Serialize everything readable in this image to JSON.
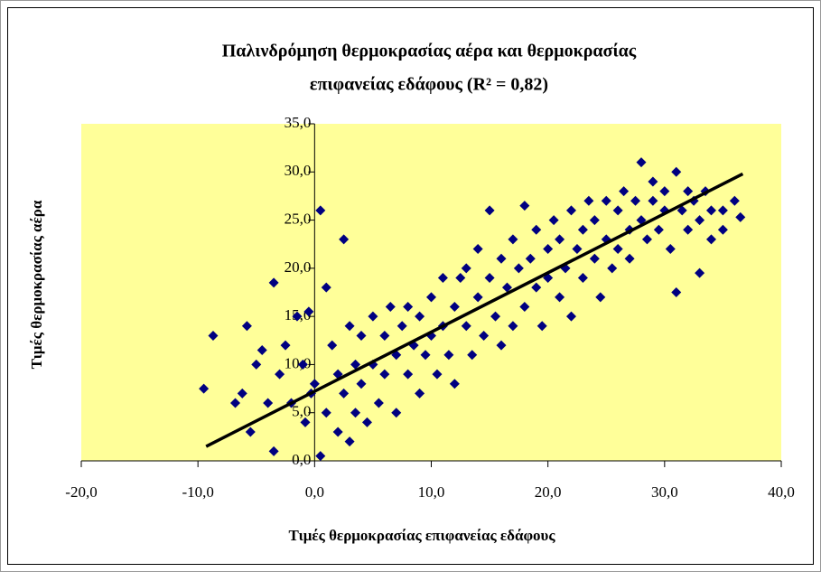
{
  "chart_data": {
    "type": "scatter",
    "title": [
      "Παλινδρόμηση θερμοκρασίας αέρα και θερμοκρασίας",
      "επιφανείας εδάφους (R² = 0,82)"
    ],
    "x_label": "Τιμές θερμοκρασίας επιφανείας εδάφους",
    "y_label": "Τιμές θερμοκρασίας αέρα",
    "color": "#000080",
    "plot_background": "#ffff99",
    "x": [
      -9.5,
      -8.7,
      -6.8,
      -6.2,
      -5.8,
      -5.5,
      -5,
      -4.5,
      -4,
      -3.5,
      -3.5,
      -3,
      -2.5,
      -2,
      -1.5,
      -1,
      -0.8,
      -0.5,
      -0.3,
      0,
      0.5,
      0.5,
      1,
      1,
      1.5,
      2,
      2,
      2.5,
      2.5,
      3,
      3,
      3.5,
      3.5,
      4,
      4,
      4.5,
      5,
      5,
      5.5,
      6,
      6,
      6.5,
      7,
      7,
      7.5,
      8,
      8,
      8.5,
      9,
      9,
      9.5,
      10,
      10,
      10.5,
      11,
      11,
      11.5,
      12,
      12,
      12.5,
      13,
      13,
      13.5,
      14,
      14,
      14.5,
      15,
      15,
      15.5,
      16,
      16,
      16.5,
      17,
      17,
      17.5,
      18,
      18,
      18.5,
      19,
      19,
      19.5,
      20,
      20,
      20.5,
      21,
      21,
      21.5,
      22,
      22,
      22.5,
      23,
      23,
      23.5,
      24,
      24,
      24.5,
      25,
      25,
      25.5,
      26,
      26,
      26.5,
      27,
      27,
      27.5,
      28,
      28,
      28.5,
      29,
      29,
      29.5,
      30,
      30,
      30.5,
      31,
      31,
      31.5,
      32,
      32,
      32.5,
      33,
      33,
      33.5,
      34,
      34,
      35,
      35,
      36,
      36.5
    ],
    "values": [
      7.5,
      13,
      6,
      7,
      14,
      3,
      10,
      11.5,
      6,
      18.5,
      1,
      9,
      12,
      6,
      15,
      10,
      4,
      15.5,
      7,
      8,
      26,
      0.5,
      18,
      5,
      12,
      3,
      9,
      23,
      7,
      14,
      2,
      10,
      5,
      13,
      8,
      4,
      15,
      10,
      6,
      13,
      9,
      16,
      11,
      5,
      14,
      9,
      16,
      12,
      7,
      15,
      11,
      17,
      13,
      9,
      19,
      14,
      11,
      16,
      8,
      19,
      14,
      20,
      11,
      17,
      22,
      13,
      19,
      26,
      15,
      21,
      12,
      18,
      23,
      14,
      20,
      26.5,
      16,
      21,
      18,
      24,
      14,
      22,
      19,
      25,
      17,
      23,
      20,
      26,
      15,
      22,
      24,
      19,
      27,
      21,
      25,
      17,
      27,
      23,
      20,
      26,
      22,
      28,
      24,
      21,
      27,
      31,
      25,
      23,
      27,
      29,
      24,
      28,
      26,
      22,
      30,
      17.5,
      26,
      28,
      24,
      27,
      19.5,
      25,
      28,
      26,
      23,
      26,
      24,
      27,
      25.3
    ],
    "trendline": {
      "x": [
        -9.3,
        36.7
      ],
      "y": [
        1.5,
        29.8
      ],
      "color": "#000000"
    },
    "xlim": [
      -20,
      40
    ],
    "xticks": [
      {
        "value": -20,
        "label": "-20,0"
      },
      {
        "value": -10,
        "label": "-10,0"
      },
      {
        "value": 0,
        "label": "0,0"
      },
      {
        "value": 10,
        "label": "10,0"
      },
      {
        "value": 20,
        "label": "20,0"
      },
      {
        "value": 30,
        "label": "30,0"
      },
      {
        "value": 40,
        "label": "40,0"
      }
    ],
    "ylim": [
      0,
      35
    ],
    "yticks": [
      {
        "value": 0,
        "label": "0,0"
      },
      {
        "value": 5,
        "label": "5,0"
      },
      {
        "value": 10,
        "label": "10,0"
      },
      {
        "value": 15,
        "label": "15,0"
      },
      {
        "value": 20,
        "label": "20,0"
      },
      {
        "value": 25,
        "label": "25,0"
      },
      {
        "value": 30,
        "label": "30,0"
      },
      {
        "value": 35,
        "label": "35,0"
      }
    ],
    "grid": false
  }
}
